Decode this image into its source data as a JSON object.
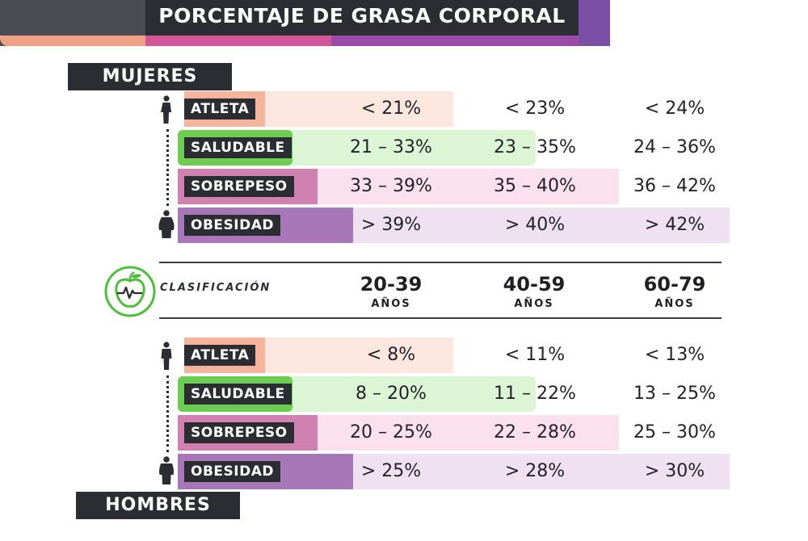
{
  "title": "PORCENTAJE DE GRASA CORPORAL",
  "women_label": "MUJERES",
  "men_label": "HOMBRES",
  "classification_label": "CLASIFICACIÓN",
  "age_groups": [
    {
      "range": "20-39",
      "unit": "AÑOS"
    },
    {
      "range": "40-59",
      "unit": "AÑOS"
    },
    {
      "range": "60-79",
      "unit": "AÑOS"
    }
  ],
  "categories": [
    "ATLETA",
    "SALUDABLE",
    "SOBREPESO",
    "OBESIDAD"
  ],
  "women": [
    [
      "< 21%",
      "< 23%",
      "< 24%"
    ],
    [
      "21 – 33%",
      "23 – 35%",
      "24 – 36%"
    ],
    [
      "33 – 39%",
      "35 – 40%",
      "36 – 42%"
    ],
    [
      "> 39%",
      "> 40%",
      "> 42%"
    ]
  ],
  "men": [
    [
      "< 8%",
      "< 11%",
      "< 13%"
    ],
    [
      "8 – 20%",
      "11 – 22%",
      "13 – 25%"
    ],
    [
      "20 – 25%",
      "22 – 28%",
      "25 – 30%"
    ],
    [
      "> 25%",
      "> 28%",
      "> 30%"
    ]
  ],
  "colors": {
    "atleta": "#f6b49c",
    "saludable": "#6dcd52",
    "sobrepeso": "#d081b0",
    "obesidad": "#a877b8",
    "dark": "#2b2d33"
  },
  "icons": {
    "logo": "apple-heartbeat-logo",
    "thin": "thin-person-icon",
    "heavy": "heavy-person-icon"
  }
}
